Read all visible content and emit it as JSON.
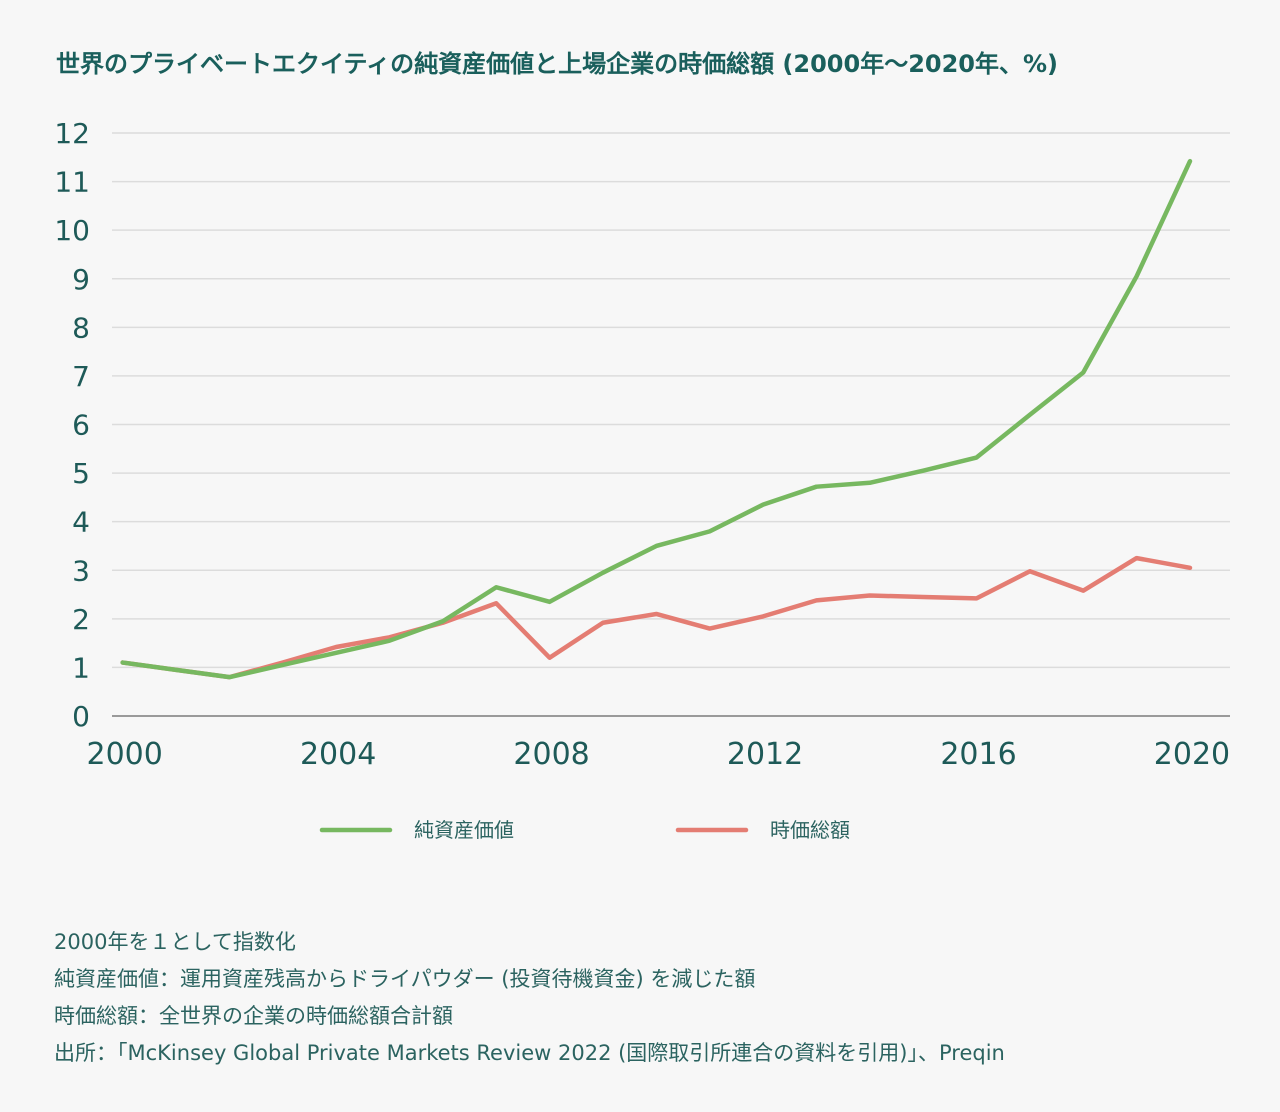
{
  "chart_data": {
    "type": "line",
    "title": "世界のプライベートエクイティの純資産価値と上場企業の時価総額 (2000年〜2020年、%)",
    "x": [
      2000,
      2001,
      2002,
      2003,
      2004,
      2005,
      2006,
      2007,
      2008,
      2009,
      2010,
      2011,
      2012,
      2013,
      2014,
      2015,
      2016,
      2017,
      2018,
      2019,
      2020
    ],
    "series": [
      {
        "name": "純資産価値",
        "color": "#77b860",
        "values": [
          1.1,
          0.95,
          0.8,
          1.05,
          1.3,
          1.55,
          1.95,
          2.65,
          2.35,
          2.95,
          3.5,
          3.8,
          4.35,
          4.72,
          4.8,
          5.05,
          5.32,
          6.2,
          7.07,
          9.05,
          11.42
        ]
      },
      {
        "name": "時価総額",
        "color": "#e47d73",
        "values": [
          1.1,
          0.95,
          0.8,
          1.1,
          1.42,
          1.62,
          1.92,
          2.32,
          1.2,
          1.92,
          2.1,
          1.8,
          2.05,
          2.38,
          2.48,
          2.45,
          2.42,
          2.98,
          2.58,
          3.25,
          3.05
        ]
      }
    ],
    "ylim": [
      0,
      12
    ],
    "yticks": [
      0,
      1,
      2,
      3,
      4,
      5,
      6,
      7,
      8,
      9,
      10,
      11,
      12
    ],
    "xticks": [
      2000,
      2004,
      2008,
      2012,
      2016,
      2020
    ],
    "xlabel": "",
    "ylabel": "",
    "grid": true,
    "legend": "bottom"
  },
  "notes": [
    "2000年を１として指数化",
    "純資産価値：運用資産残高からドライパウダー (投資待機資金) を減じた額",
    "時価総額：全世界の企業の時価総額合計額",
    "出所：「McKinsey Global Private Markets Review 2022 (国際取引所連合の資料を引用)」、Preqin"
  ]
}
